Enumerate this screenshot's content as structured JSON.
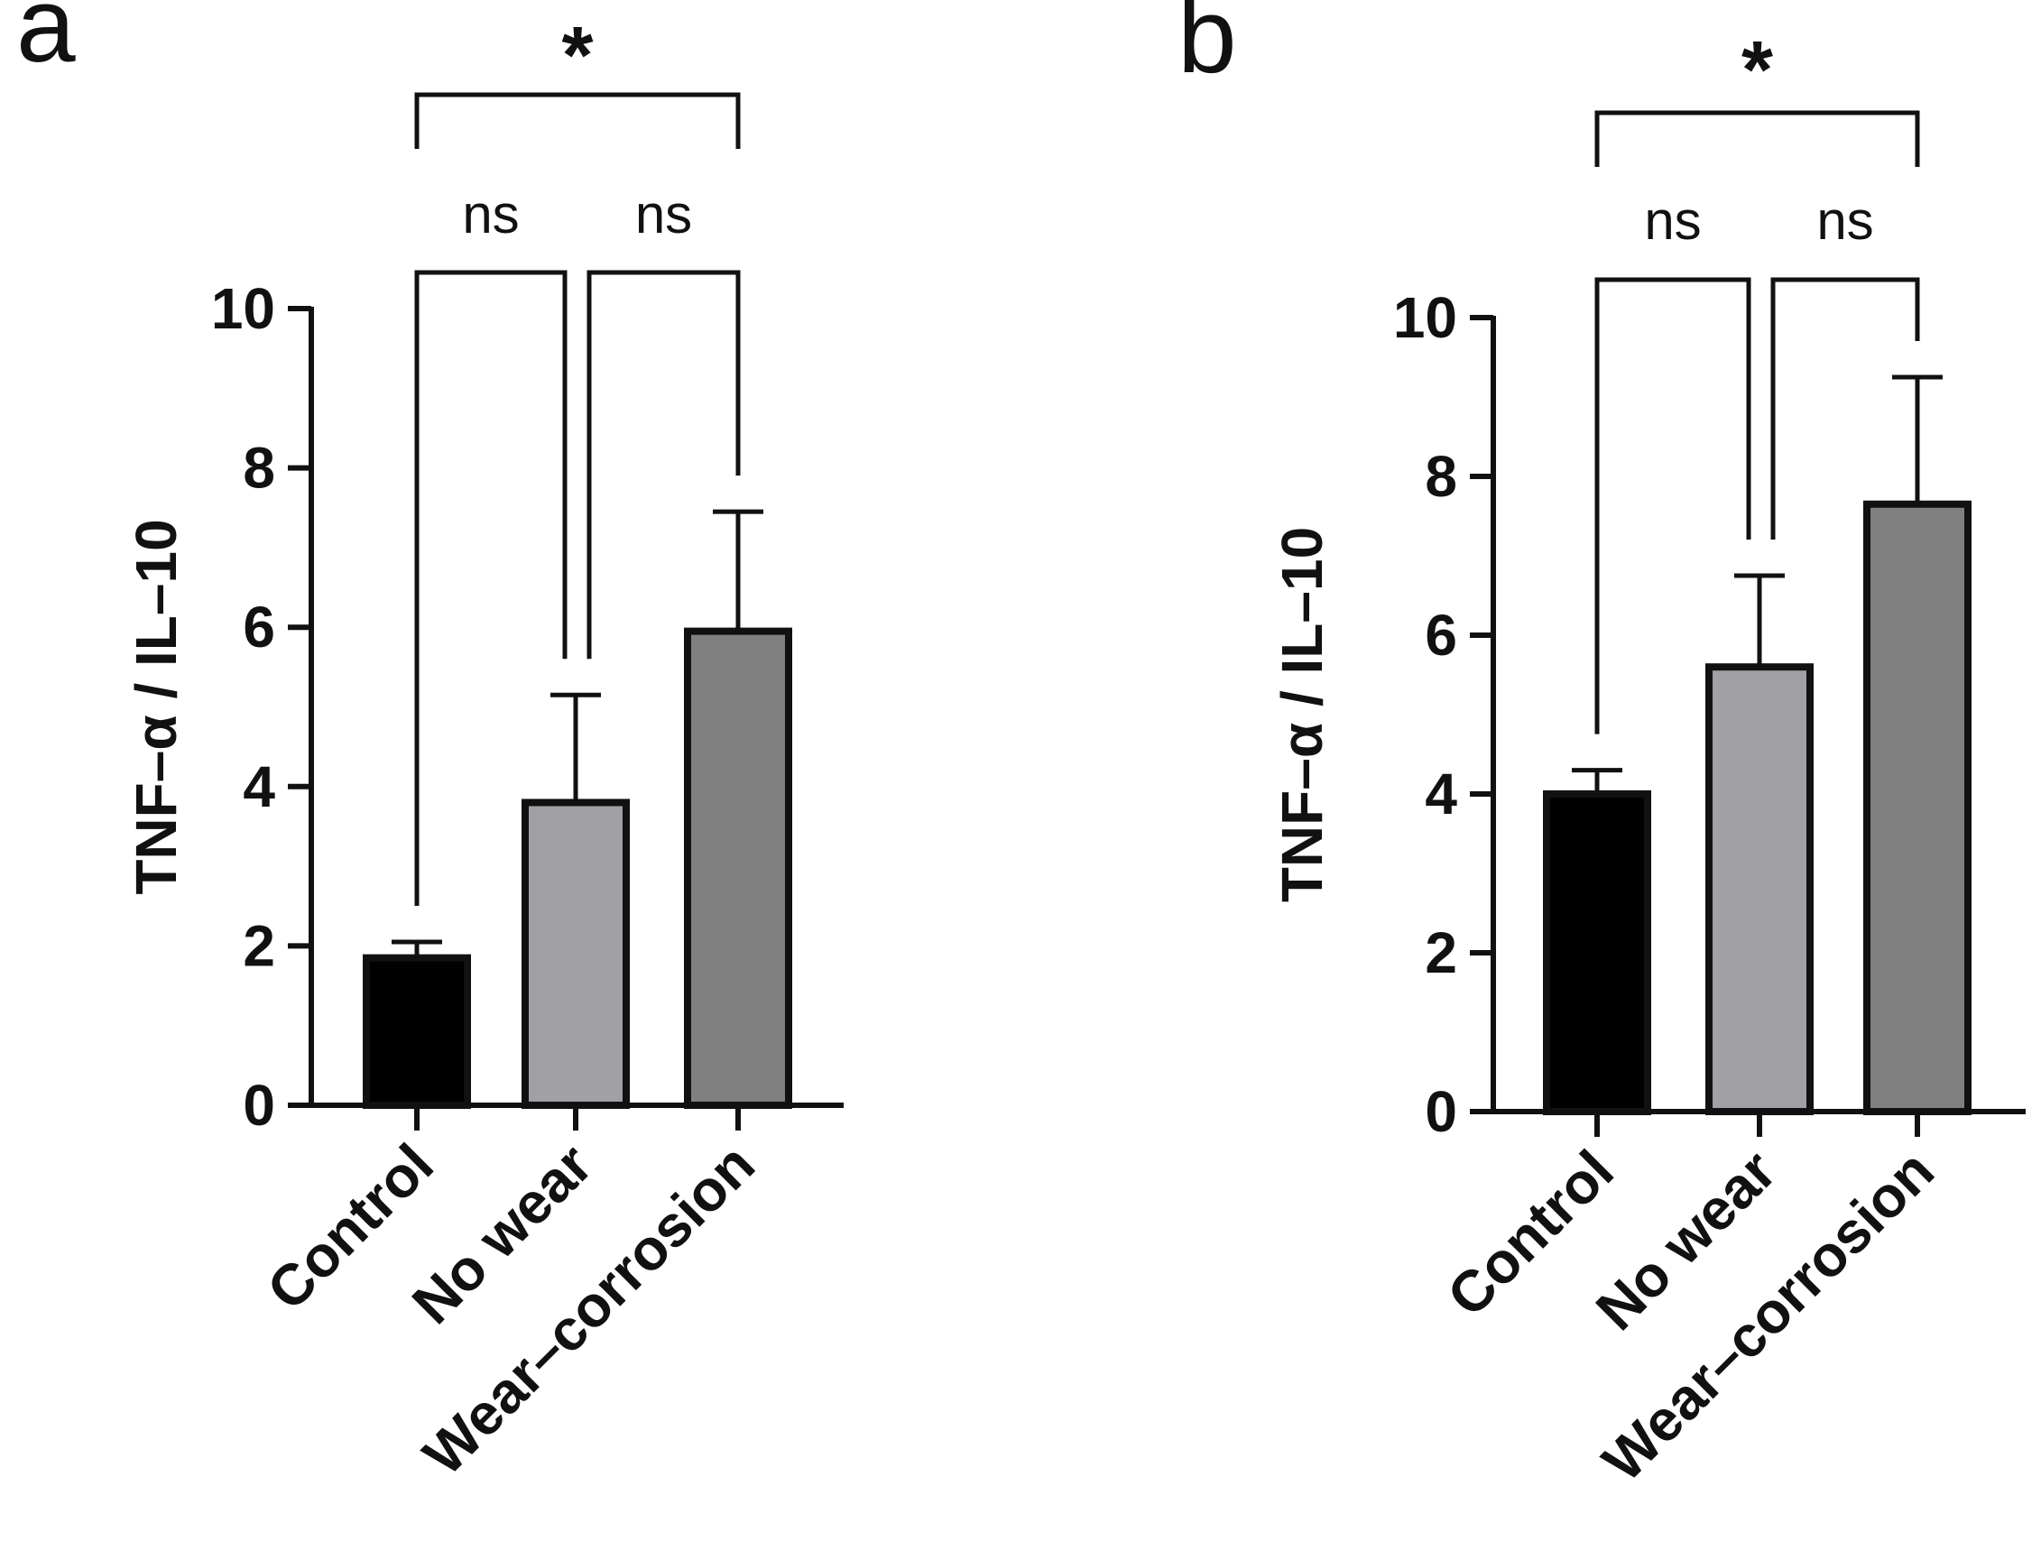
{
  "chart_data": [
    {
      "panel": "a",
      "type": "bar",
      "categories": [
        "Control",
        "No wear",
        "Wear–corrosion"
      ],
      "values": [
        1.85,
        3.8,
        5.95
      ],
      "errors": [
        0.2,
        1.35,
        1.5
      ],
      "colors": [
        "#000000",
        "#a0a0a5",
        "#808080"
      ],
      "ylabel": "TNF–α / IL–10",
      "xlabel": "",
      "ylim": [
        0,
        10
      ],
      "yticks": [
        0,
        2,
        4,
        6,
        8,
        10
      ],
      "grid": false,
      "comparisons": [
        {
          "from": 0,
          "to": 1,
          "label": "ns",
          "level": 1
        },
        {
          "from": 1,
          "to": 2,
          "label": "ns",
          "level": 1
        },
        {
          "from": 0,
          "to": 2,
          "label": "*",
          "level": 2
        }
      ]
    },
    {
      "panel": "b",
      "type": "bar",
      "categories": [
        "Control",
        "No wear",
        "Wear–corrosion"
      ],
      "values": [
        4.0,
        5.6,
        7.65
      ],
      "errors": [
        0.3,
        1.15,
        1.6
      ],
      "colors": [
        "#000000",
        "#a0a0a5",
        "#808080"
      ],
      "ylabel": "TNF–α / IL–10",
      "xlabel": "",
      "ylim": [
        0,
        10
      ],
      "yticks": [
        0,
        2,
        4,
        6,
        8,
        10
      ],
      "grid": false,
      "comparisons": [
        {
          "from": 0,
          "to": 1,
          "label": "ns",
          "level": 1
        },
        {
          "from": 1,
          "to": 2,
          "label": "ns",
          "level": 1
        },
        {
          "from": 0,
          "to": 2,
          "label": "*",
          "level": 2
        }
      ]
    }
  ]
}
